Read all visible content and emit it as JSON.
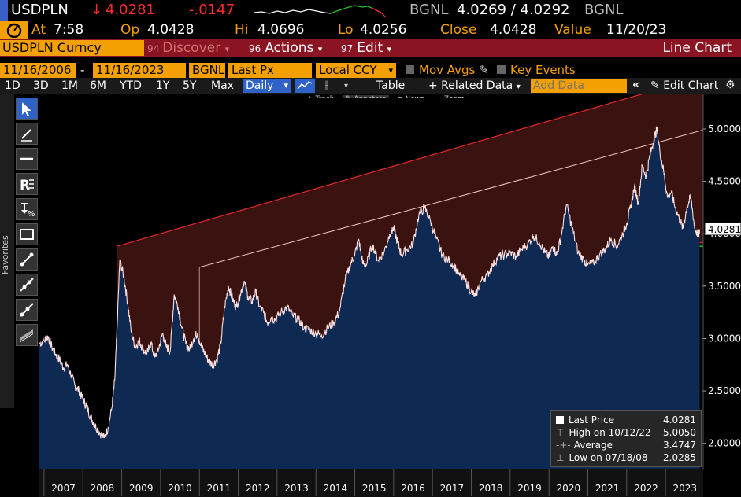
{
  "ticker": {
    "symbol": "USDPLN",
    "arrow": "↓",
    "last": "4.0281",
    "change": "-.0147",
    "src1": "BGNL",
    "bid_ask": "4.0269 / 4.0292",
    "src2": "BGNL"
  },
  "quote": {
    "at_label": "At",
    "time": "7:58",
    "open_label": "Op",
    "open": "4.0428",
    "high_label": "Hi",
    "high": "4.0696",
    "low_label": "Lo",
    "low": "4.0256",
    "close_label": "Close",
    "close": "4.0428",
    "value_label": "Value",
    "value_date": "11/20/23"
  },
  "menubar": {
    "security": "USDPLN Curncy",
    "discover_num": "94",
    "discover": "Discover",
    "actions_num": "96",
    "actions": "Actions",
    "edit_num": "97",
    "edit": "Edit",
    "title": "Line Chart"
  },
  "settings": {
    "start_date": "11/16/2006",
    "dash": "-",
    "end_date": "11/16/2023",
    "source": "BGNL",
    "field": "Last Px",
    "currency": "Local CCY",
    "mov_avgs": "Mov Avgs",
    "key_events": "Key Events"
  },
  "toolbar": {
    "periods": [
      "1D",
      "3D",
      "1M",
      "6M",
      "YTD",
      "1Y",
      "5Y",
      "Max"
    ],
    "frequency": "Daily",
    "table": "Table",
    "related": "+ Related Data",
    "add_data_placeholder": "Add Data",
    "edit_chart": "Edit Chart"
  },
  "subtools": {
    "track": "Track",
    "annotate": "Annotate",
    "news": "News",
    "zoom": "Zoom"
  },
  "sidebar": {
    "favorites": "Favorites",
    "tools": [
      "cursor-icon",
      "pen-icon",
      "horizontal-line-icon",
      "regression-icon",
      "fibonacci-icon",
      "rectangle-icon",
      "trend-line-icon",
      "channel-icon",
      "trend-line-2-icon",
      "parallel-icon"
    ]
  },
  "legend": {
    "last_price_label": "Last Price",
    "last_price": "4.0281",
    "high_label": "High on 10/12/22",
    "high": "5.0050",
    "avg_label": "Average",
    "avg": "3.4747",
    "low_label": "Low on 07/18/08",
    "low": "2.0285"
  },
  "price_tag": "4.0281",
  "colors": {
    "accent_orange": "#f4a000",
    "menu_red": "#8a1422",
    "area_blue": "#0f2a52",
    "channel_red": "#e8282a",
    "price_line": "#ffe0e0",
    "sparkline_green": "#21c521"
  },
  "chart_data": {
    "type": "line",
    "ylim": [
      1.75,
      5.3
    ],
    "yticks": [
      "5.0000",
      "4.5000",
      "4.0000",
      "3.5000",
      "3.0000",
      "2.5000",
      "2.0000"
    ],
    "yvalues": [
      5.0,
      4.5,
      4.0,
      3.5,
      3.0,
      2.5,
      2.0
    ],
    "xticks": [
      "2007",
      "2008",
      "2009",
      "2010",
      "2011",
      "2012",
      "2013",
      "2014",
      "2015",
      "2016",
      "2017",
      "2018",
      "2019",
      "2020",
      "2021",
      "2022",
      "2023"
    ],
    "series": [
      {
        "x": [
          2006.88,
          2007.0,
          2007.1,
          2007.2,
          2007.3,
          2007.4,
          2007.5,
          2007.6,
          2007.7,
          2007.8,
          2007.9,
          2008.0,
          2008.1,
          2008.2,
          2008.3,
          2008.4,
          2008.55,
          2008.65,
          2008.75,
          2008.82,
          2008.88,
          2008.95,
          2009.05,
          2009.15,
          2009.25,
          2009.35,
          2009.45,
          2009.55,
          2009.65,
          2009.75,
          2009.85,
          2009.95,
          2010.05,
          2010.15,
          2010.25,
          2010.35,
          2010.45,
          2010.55,
          2010.65,
          2010.75,
          2010.85,
          2010.95,
          2011.05,
          2011.15,
          2011.25,
          2011.35,
          2011.45,
          2011.55,
          2011.65,
          2011.75,
          2011.85,
          2011.95,
          2012.05,
          2012.15,
          2012.25,
          2012.35,
          2012.45,
          2012.55,
          2012.65,
          2012.75,
          2012.85,
          2012.95,
          2013.1,
          2013.25,
          2013.4,
          2013.55,
          2013.7,
          2013.85,
          2014.0,
          2014.15,
          2014.3,
          2014.45,
          2014.6,
          2014.75,
          2014.9,
          2015.0,
          2015.1,
          2015.2,
          2015.3,
          2015.45,
          2015.6,
          2015.75,
          2015.9,
          2016.0,
          2016.1,
          2016.2,
          2016.35,
          2016.5,
          2016.65,
          2016.8,
          2016.95,
          2017.1,
          2017.25,
          2017.4,
          2017.55,
          2017.7,
          2017.85,
          2018.0,
          2018.1,
          2018.25,
          2018.4,
          2018.55,
          2018.7,
          2018.85,
          2019.0,
          2019.15,
          2019.3,
          2019.45,
          2019.6,
          2019.75,
          2019.9,
          2020.0,
          2020.1,
          2020.2,
          2020.3,
          2020.45,
          2020.6,
          2020.75,
          2020.9,
          2021.0,
          2021.15,
          2021.3,
          2021.45,
          2021.6,
          2021.75,
          2021.9,
          2022.0,
          2022.1,
          2022.2,
          2022.3,
          2022.4,
          2022.5,
          2022.6,
          2022.7,
          2022.78,
          2022.85,
          2022.95,
          2023.05,
          2023.15,
          2023.25,
          2023.35,
          2023.45,
          2023.55,
          2023.65,
          2023.75,
          2023.85,
          2023.88
        ],
        "y": [
          2.95,
          2.98,
          3.02,
          2.92,
          2.85,
          2.8,
          2.72,
          2.75,
          2.65,
          2.55,
          2.5,
          2.42,
          2.35,
          2.25,
          2.18,
          2.12,
          2.05,
          2.15,
          2.35,
          2.6,
          3.1,
          3.75,
          3.6,
          3.35,
          3.05,
          2.92,
          2.98,
          2.9,
          2.85,
          2.96,
          2.82,
          2.9,
          3.05,
          2.92,
          2.88,
          3.42,
          3.3,
          3.1,
          2.95,
          2.9,
          3.0,
          3.05,
          2.92,
          2.85,
          2.78,
          2.75,
          2.8,
          2.95,
          3.3,
          3.5,
          3.38,
          3.3,
          3.42,
          3.55,
          3.4,
          3.35,
          3.45,
          3.3,
          3.25,
          3.15,
          3.2,
          3.18,
          3.25,
          3.3,
          3.22,
          3.18,
          3.1,
          3.08,
          3.05,
          3.03,
          3.1,
          3.15,
          3.25,
          3.55,
          3.72,
          3.8,
          3.95,
          3.72,
          3.7,
          3.9,
          3.75,
          3.82,
          4.0,
          4.05,
          3.92,
          3.8,
          3.85,
          3.9,
          4.18,
          4.25,
          4.12,
          3.95,
          3.8,
          3.75,
          3.7,
          3.6,
          3.55,
          3.45,
          3.4,
          3.55,
          3.6,
          3.7,
          3.78,
          3.8,
          3.82,
          3.78,
          3.85,
          3.9,
          3.98,
          3.92,
          3.82,
          3.78,
          3.88,
          3.8,
          3.95,
          4.28,
          4.05,
          3.82,
          3.75,
          3.7,
          3.72,
          3.8,
          3.85,
          3.95,
          3.88,
          4.0,
          4.1,
          4.25,
          4.45,
          4.3,
          4.65,
          4.55,
          4.75,
          4.9,
          5.0,
          4.8,
          4.6,
          4.35,
          4.4,
          4.25,
          4.15,
          4.05,
          4.25,
          4.35,
          4.05,
          3.98,
          4.03
        ]
      }
    ]
  }
}
